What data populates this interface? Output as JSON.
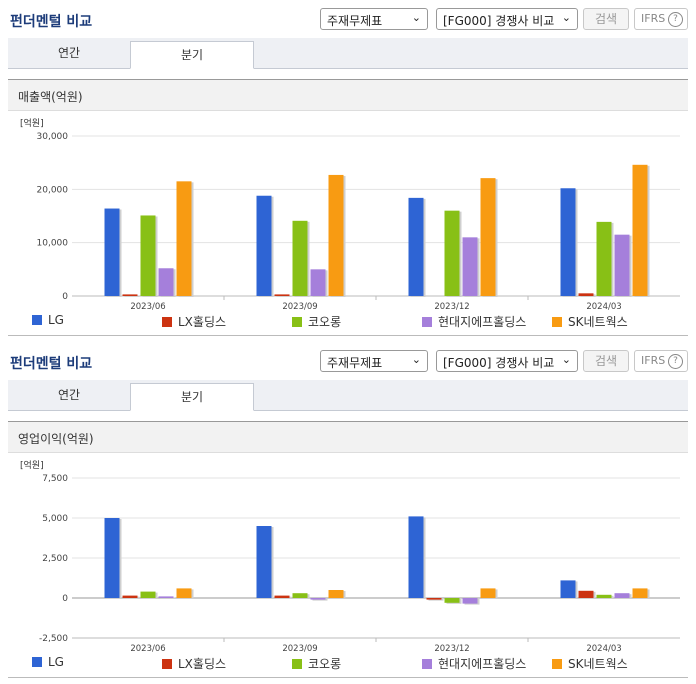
{
  "panels": [
    {
      "title": "펀더멘털 비교",
      "select1": "주재무제표",
      "select2": "[FG000] 경쟁사 비교",
      "search_label": "검색",
      "ifrs_label": "IFRS",
      "ifrs_help": "?",
      "tabs": [
        "연간",
        "분기"
      ],
      "active_tab": 1,
      "section_title": "매출액(억원)"
    },
    {
      "title": "펀더멘털 비교",
      "select1": "주재무제표",
      "select2": "[FG000] 경쟁사 비교",
      "search_label": "검색",
      "ifrs_label": "IFRS",
      "ifrs_help": "?",
      "tabs": [
        "연간",
        "분기"
      ],
      "active_tab": 1,
      "section_title": "영업이익(억원)"
    }
  ],
  "colors": {
    "LG": "#2e64d4",
    "LX홀딩스": "#cc3311",
    "코오롱": "#88c016",
    "현대지에프홀딩스": "#a57fdb",
    "SK네트웍스": "#f89b12"
  },
  "chart_data": [
    {
      "type": "bar",
      "unit_label": "[억원]",
      "categories": [
        "2023/06",
        "2023/09",
        "2023/12",
        "2024/03"
      ],
      "ylim": [
        0,
        30000
      ],
      "yticks": [
        0,
        10000,
        20000,
        30000
      ],
      "ytick_labels": [
        "0",
        "10,000",
        "20,000",
        "30,000"
      ],
      "grid": true,
      "legend_position": "bottom",
      "series": [
        {
          "name": "LG",
          "values": [
            16400,
            18800,
            18400,
            20200
          ]
        },
        {
          "name": "LX홀딩스",
          "values": [
            300,
            300,
            0,
            500
          ]
        },
        {
          "name": "코오롱",
          "values": [
            15100,
            14100,
            16000,
            13900
          ]
        },
        {
          "name": "현대지에프홀딩스",
          "values": [
            5200,
            5000,
            11000,
            11500
          ]
        },
        {
          "name": "SK네트웍스",
          "values": [
            21500,
            22700,
            22100,
            24600
          ]
        }
      ]
    },
    {
      "type": "bar",
      "unit_label": "[억원]",
      "categories": [
        "2023/06",
        "2023/09",
        "2023/12",
        "2024/03"
      ],
      "ylim": [
        -2500,
        7500
      ],
      "yticks": [
        -2500,
        0,
        2500,
        5000,
        7500
      ],
      "ytick_labels": [
        "-2,500",
        "0",
        "2,500",
        "5,000",
        "7,500"
      ],
      "grid": true,
      "legend_position": "bottom",
      "series": [
        {
          "name": "LG",
          "values": [
            5000,
            4500,
            5100,
            1100
          ]
        },
        {
          "name": "LX홀딩스",
          "values": [
            150,
            150,
            -100,
            450
          ]
        },
        {
          "name": "코오롱",
          "values": [
            400,
            300,
            -300,
            200
          ]
        },
        {
          "name": "현대지에프홀딩스",
          "values": [
            100,
            -100,
            -350,
            300
          ]
        },
        {
          "name": "SK네트웍스",
          "values": [
            600,
            500,
            600,
            600
          ]
        }
      ]
    }
  ]
}
